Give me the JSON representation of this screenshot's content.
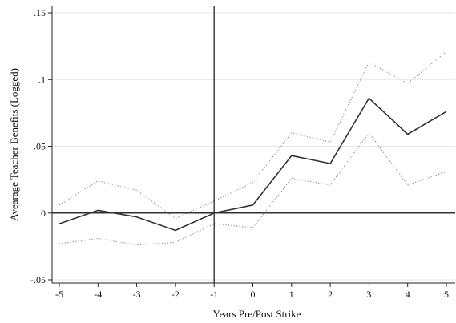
{
  "chart_data": {
    "type": "line",
    "title": "",
    "xlabel": "Years Pre/Post Strike",
    "ylabel": "Avearage Teacher Benefits (Logged)",
    "x": [
      -5,
      -4,
      -3,
      -2,
      -1,
      0,
      1,
      2,
      3,
      4,
      5
    ],
    "xlim": [
      -5,
      5
    ],
    "ylim": [
      -0.05,
      0.15
    ],
    "x_ticks": [
      -5,
      -4,
      -3,
      -2,
      -1,
      0,
      1,
      2,
      3,
      4,
      5
    ],
    "x_tick_labels": [
      "-5",
      "-4",
      "-3",
      "-2",
      "-1",
      "0",
      "1",
      "2",
      "3",
      "4",
      "5"
    ],
    "y_ticks": [
      -0.05,
      0,
      0.05,
      0.1,
      0.15
    ],
    "y_tick_labels": [
      "-.05",
      "0",
      ".05",
      ".1",
      ".15"
    ],
    "reference_lines": {
      "x": -1,
      "y": 0
    },
    "grid": true,
    "legend": "none",
    "series": [
      {
        "style": "solid",
        "color": "#333333",
        "values": [
          -0.008,
          0.002,
          -0.003,
          -0.013,
          0.0,
          0.006,
          0.043,
          0.037,
          0.086,
          0.059,
          0.076
        ]
      },
      {
        "style": "dotted",
        "color": "#8a8a8a",
        "values": [
          0.006,
          0.024,
          0.017,
          -0.004,
          0.009,
          0.023,
          0.06,
          0.053,
          0.113,
          0.097,
          0.121
        ]
      },
      {
        "style": "dotted",
        "color": "#8a8a8a",
        "values": [
          -0.023,
          -0.019,
          -0.024,
          -0.022,
          -0.008,
          -0.011,
          0.026,
          0.021,
          0.06,
          0.021,
          0.031
        ]
      }
    ]
  }
}
